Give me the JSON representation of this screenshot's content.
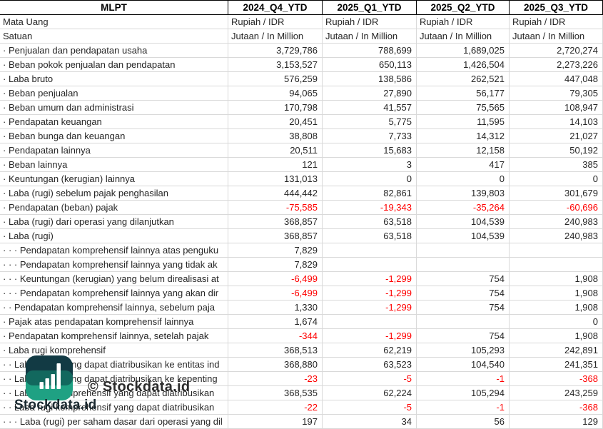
{
  "table": {
    "corner_header": "MLPT",
    "column_headers": [
      "2024_Q4_YTD",
      "2025_Q1_YTD",
      "2025_Q2_YTD",
      "2025_Q3_YTD"
    ],
    "meta_rows": [
      {
        "label": "Mata Uang",
        "values": [
          "Rupiah / IDR",
          "Rupiah / IDR",
          "Rupiah / IDR",
          "Rupiah / IDR"
        ]
      },
      {
        "label": "Satuan",
        "values": [
          "Jutaan / In Million",
          "Jutaan / In Million",
          "Jutaan / In Million",
          "Jutaan / In Million"
        ]
      }
    ],
    "rows": [
      {
        "label": "· Penjualan dan pendapatan usaha",
        "values": [
          "3,729,786",
          "788,699",
          "1,689,025",
          "2,720,274"
        ]
      },
      {
        "label": "· Beban pokok penjualan dan pendapatan",
        "values": [
          "3,153,527",
          "650,113",
          "1,426,504",
          "2,273,226"
        ]
      },
      {
        "label": "· Laba bruto",
        "values": [
          "576,259",
          "138,586",
          "262,521",
          "447,048"
        ]
      },
      {
        "label": "· Beban penjualan",
        "values": [
          "94,065",
          "27,890",
          "56,177",
          "79,305"
        ]
      },
      {
        "label": "· Beban umum dan administrasi",
        "values": [
          "170,798",
          "41,557",
          "75,565",
          "108,947"
        ]
      },
      {
        "label": "· Pendapatan keuangan",
        "values": [
          "20,451",
          "5,775",
          "11,595",
          "14,103"
        ]
      },
      {
        "label": "· Beban bunga dan keuangan",
        "values": [
          "38,808",
          "7,733",
          "14,312",
          "21,027"
        ]
      },
      {
        "label": "· Pendapatan lainnya",
        "values": [
          "20,511",
          "15,683",
          "12,158",
          "50,192"
        ]
      },
      {
        "label": "· Beban lainnya",
        "values": [
          "121",
          "3",
          "417",
          "385"
        ]
      },
      {
        "label": "· Keuntungan (kerugian) lainnya",
        "values": [
          "131,013",
          "0",
          "0",
          "0"
        ]
      },
      {
        "label": "· Laba (rugi) sebelum pajak penghasilan",
        "values": [
          "444,442",
          "82,861",
          "139,803",
          "301,679"
        ]
      },
      {
        "label": "· Pendapatan (beban) pajak",
        "values": [
          "-75,585",
          "-19,343",
          "-35,264",
          "-60,696"
        ]
      },
      {
        "label": "· Laba (rugi) dari operasi yang dilanjutkan",
        "values": [
          "368,857",
          "63,518",
          "104,539",
          "240,983"
        ]
      },
      {
        "label": "· Laba (rugi)",
        "values": [
          "368,857",
          "63,518",
          "104,539",
          "240,983"
        ]
      },
      {
        "label": "· · · Pendapatan komprehensif lainnya atas penguku",
        "values": [
          "7,829",
          "",
          "",
          ""
        ]
      },
      {
        "label": "· · · Pendapatan komprehensif lainnya yang tidak ak",
        "values": [
          "7,829",
          "",
          "",
          ""
        ]
      },
      {
        "label": "· · · Keuntungan (kerugian) yang belum direalisasi at",
        "values": [
          "-6,499",
          "-1,299",
          "754",
          "1,908"
        ]
      },
      {
        "label": "· · · Pendapatan komprehensif lainnya yang akan dir",
        "values": [
          "-6,499",
          "-1,299",
          "754",
          "1,908"
        ]
      },
      {
        "label": "· · Pendapatan komprehensif lainnya, sebelum paja",
        "values": [
          "1,330",
          "-1,299",
          "754",
          "1,908"
        ]
      },
      {
        "label": "· Pajak atas pendapatan komprehensif lainnya",
        "values": [
          "1,674",
          "",
          "",
          "0"
        ]
      },
      {
        "label": "· Pendapatan komprehensif lainnya, setelah pajak",
        "values": [
          "-344",
          "-1,299",
          "754",
          "1,908"
        ]
      },
      {
        "label": "· Laba rugi komprehensif",
        "values": [
          "368,513",
          "62,219",
          "105,293",
          "242,891"
        ]
      },
      {
        "label": "· · Laba (rugi) yang dapat diatribusikan ke entitas ind",
        "values": [
          "368,880",
          "63,523",
          "104,540",
          "241,351"
        ]
      },
      {
        "label": "· · Laba (rugi) yang dapat diatribusikan ke kepenting",
        "values": [
          "-23",
          "-5",
          "-1",
          "-368"
        ]
      },
      {
        "label": "· · Laba rugi komprehensif yang dapat diatribusikan",
        "values": [
          "368,535",
          "62,224",
          "105,294",
          "243,259"
        ]
      },
      {
        "label": "· · Laba rugi komprehensif yang dapat diatribusikan",
        "values": [
          "-22",
          "-5",
          "-1",
          "-368"
        ]
      },
      {
        "label": "· · · Laba (rugi) per saham dasar dari operasi yang dil",
        "values": [
          "197",
          "34",
          "56",
          "129"
        ]
      }
    ]
  },
  "watermark": {
    "copyright": "© Stockdata.id",
    "brand": "Stockdata.id"
  },
  "colors": {
    "negative": "#ff0000",
    "gridline": "#d9d9d9",
    "header_border": "#000000",
    "logo_dark": "#123a44",
    "logo_teal": "#1fa183",
    "logo_mid": "#12685e"
  }
}
